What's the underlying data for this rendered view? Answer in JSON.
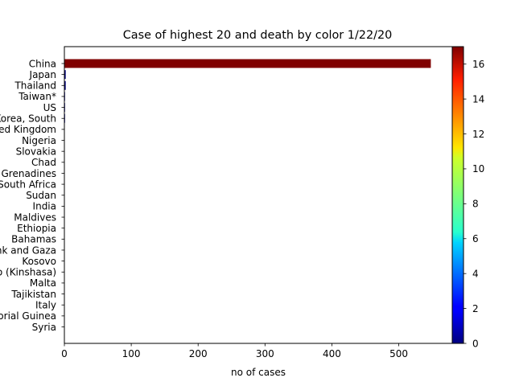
{
  "chart_data": {
    "type": "bar",
    "orientation": "horizontal",
    "title": "Case of highest 20 and death by color 1/22/20",
    "xlabel": "no of cases",
    "ylabel": "",
    "xlim": [
      0,
      580
    ],
    "x_ticks": [
      0,
      100,
      200,
      300,
      400,
      500
    ],
    "categories": [
      "China",
      "Japan",
      "Thailand",
      "Taiwan*",
      "US",
      "Korea, South",
      "United Kingdom",
      "Nigeria",
      "Slovakia",
      "Chad",
      "Saint Vincent and the Grenadines",
      "South Africa",
      "Sudan",
      "India",
      "Maldives",
      "Ethiopia",
      "Bahamas",
      "West Bank and Gaza",
      "Kosovo",
      "Congo (Kinshasa)",
      "Malta",
      "Tajikistan",
      "Italy",
      "Equatorial Guinea",
      "Syria"
    ],
    "values": [
      548,
      2,
      2,
      1,
      1,
      1,
      0,
      0,
      0,
      0,
      0,
      0,
      0,
      0,
      0,
      0,
      0,
      0,
      0,
      0,
      0,
      0,
      0,
      0,
      0
    ],
    "deaths": [
      17,
      0,
      0,
      0,
      0,
      0,
      0,
      0,
      0,
      0,
      0,
      0,
      0,
      0,
      0,
      0,
      0,
      0,
      0,
      0,
      0,
      0,
      0,
      0,
      0
    ],
    "colorbar": {
      "colormap": "jet",
      "range": [
        0,
        17
      ],
      "ticks": [
        0,
        2,
        4,
        6,
        8,
        10,
        12,
        14,
        16
      ]
    },
    "grid": false,
    "legend": "none"
  }
}
